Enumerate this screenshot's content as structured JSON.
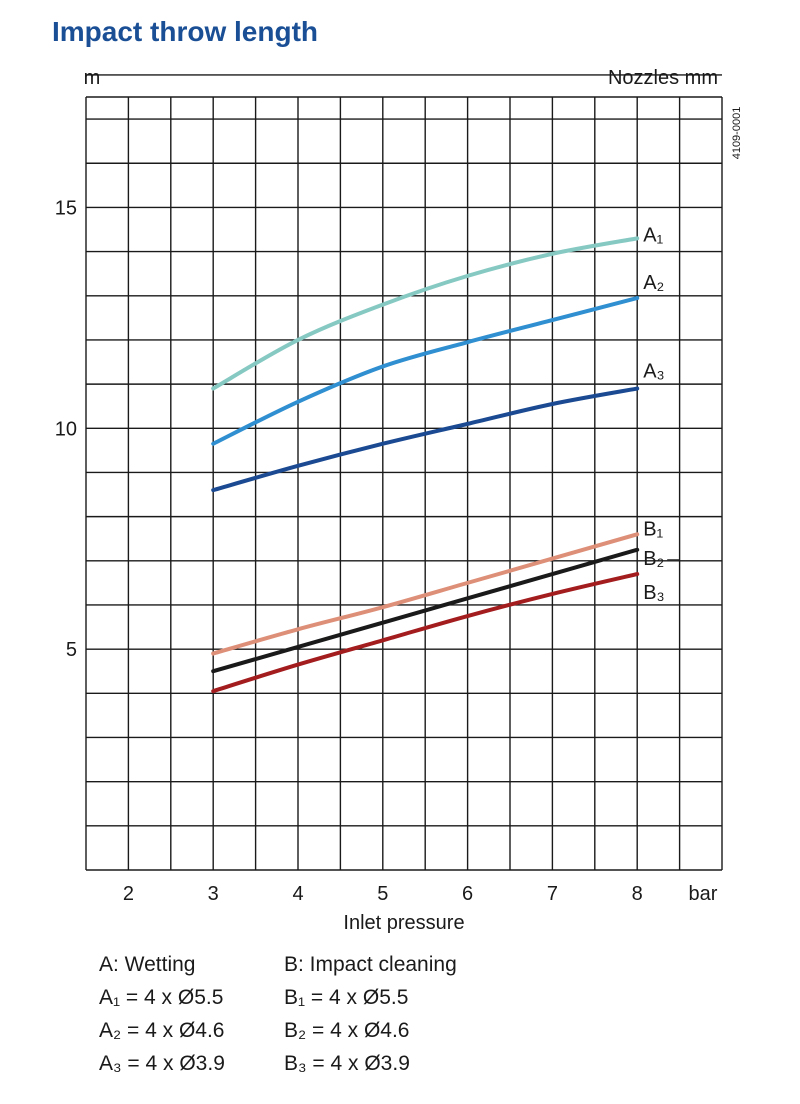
{
  "title": "Impact throw length",
  "chart_data": {
    "type": "line",
    "ylabel": "m",
    "xlabel": "Inlet pressure",
    "x_unit": "bar",
    "legend_header": "Nozzles mm",
    "figure_code": "4109-0001",
    "xlim": [
      1.5,
      9
    ],
    "ylim": [
      0,
      17.5
    ],
    "x_ticks": [
      2,
      3,
      4,
      5,
      6,
      7,
      8
    ],
    "y_ticks": [
      5,
      10,
      15
    ],
    "grid": true,
    "x": [
      3,
      4,
      5,
      6,
      7,
      8
    ],
    "series": [
      {
        "name": "A₁",
        "color": "#86c9c3",
        "values": [
          10.9,
          12.0,
          12.8,
          13.45,
          13.95,
          14.3
        ]
      },
      {
        "name": "A₂",
        "color": "#2f8fd0",
        "values": [
          9.65,
          10.6,
          11.4,
          11.95,
          12.45,
          12.95
        ]
      },
      {
        "name": "A₃",
        "color": "#1b4a92",
        "values": [
          8.6,
          9.15,
          9.65,
          10.1,
          10.55,
          10.9
        ]
      },
      {
        "name": "B₁",
        "color": "#de8f78",
        "values": [
          4.9,
          5.45,
          5.95,
          6.5,
          7.05,
          7.6
        ]
      },
      {
        "name": "B₂",
        "color": "#1a1a1a",
        "values": [
          4.5,
          5.05,
          5.6,
          6.15,
          6.7,
          7.25
        ]
      },
      {
        "name": "B₃",
        "color": "#a31d1f",
        "values": [
          4.05,
          4.65,
          5.2,
          5.75,
          6.25,
          6.7
        ]
      }
    ]
  },
  "legend": {
    "a_header": "A: Wetting",
    "a1": "A₁ = 4 x Ø5.5",
    "a2": "A₂ = 4 x Ø4.6",
    "a3": "A₃ = 4 x Ø3.9",
    "b_header": "B: Impact cleaning",
    "b1": "B₁ = 4 x Ø5.5",
    "b2": "B₂ = 4 x Ø4.6",
    "b3": "B₃ = 4 x Ø3.9"
  }
}
